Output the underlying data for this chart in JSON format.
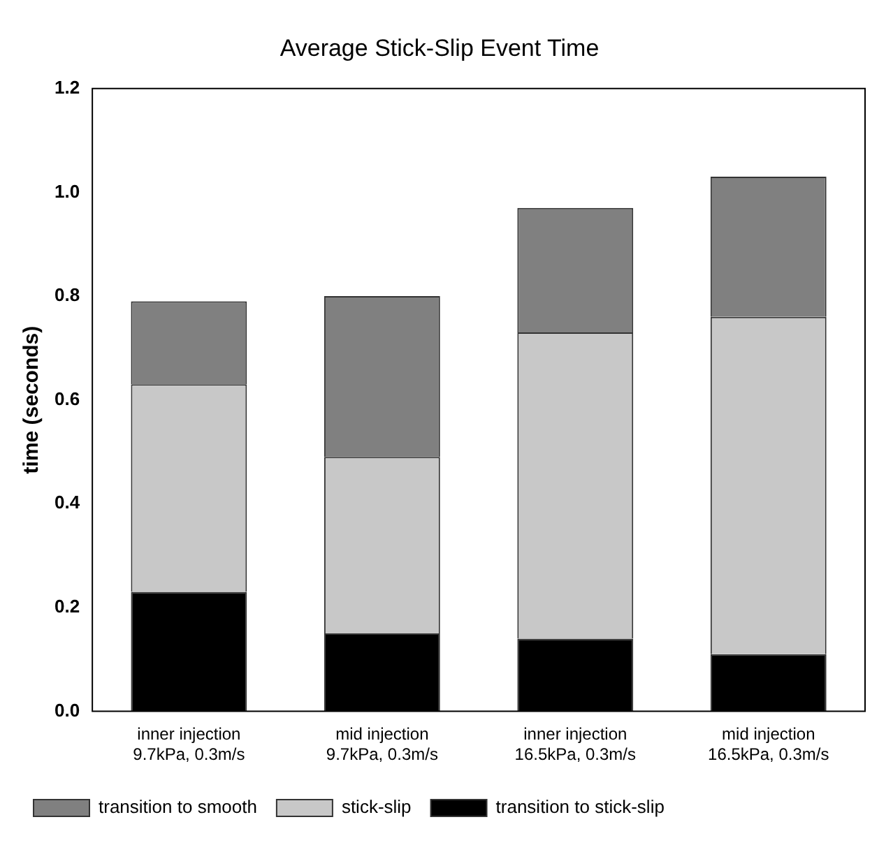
{
  "chart_data": {
    "type": "bar",
    "title": "Average Stick-Slip Event Time",
    "ylabel": "time (seconds)",
    "categories": [
      "inner injection\n9.7kPa, 0.3m/s",
      "mid injection\n9.7kPa, 0.3m/s",
      "inner injection\n16.5kPa, 0.3m/s",
      "mid injection\n16.5kPa, 0.3m/s"
    ],
    "stacked": true,
    "series": [
      {
        "name": "transition to stick-slip",
        "color": "#000000",
        "values": [
          0.23,
          0.15,
          0.14,
          0.11
        ]
      },
      {
        "name": "stick-slip",
        "color": "#c8c8c8",
        "values": [
          0.4,
          0.34,
          0.59,
          0.65
        ]
      },
      {
        "name": "transition to smooth",
        "color": "#808080",
        "values": [
          0.16,
          0.31,
          0.24,
          0.27
        ]
      }
    ],
    "ylim": [
      0,
      1.2
    ],
    "yticks": [
      {
        "value": 0,
        "label": "0.0"
      },
      0.2,
      0.4,
      0.6,
      0.8,
      {
        "value": 1,
        "label": "1.0"
      },
      1.2
    ],
    "grid": false,
    "legend": "bottom left"
  }
}
